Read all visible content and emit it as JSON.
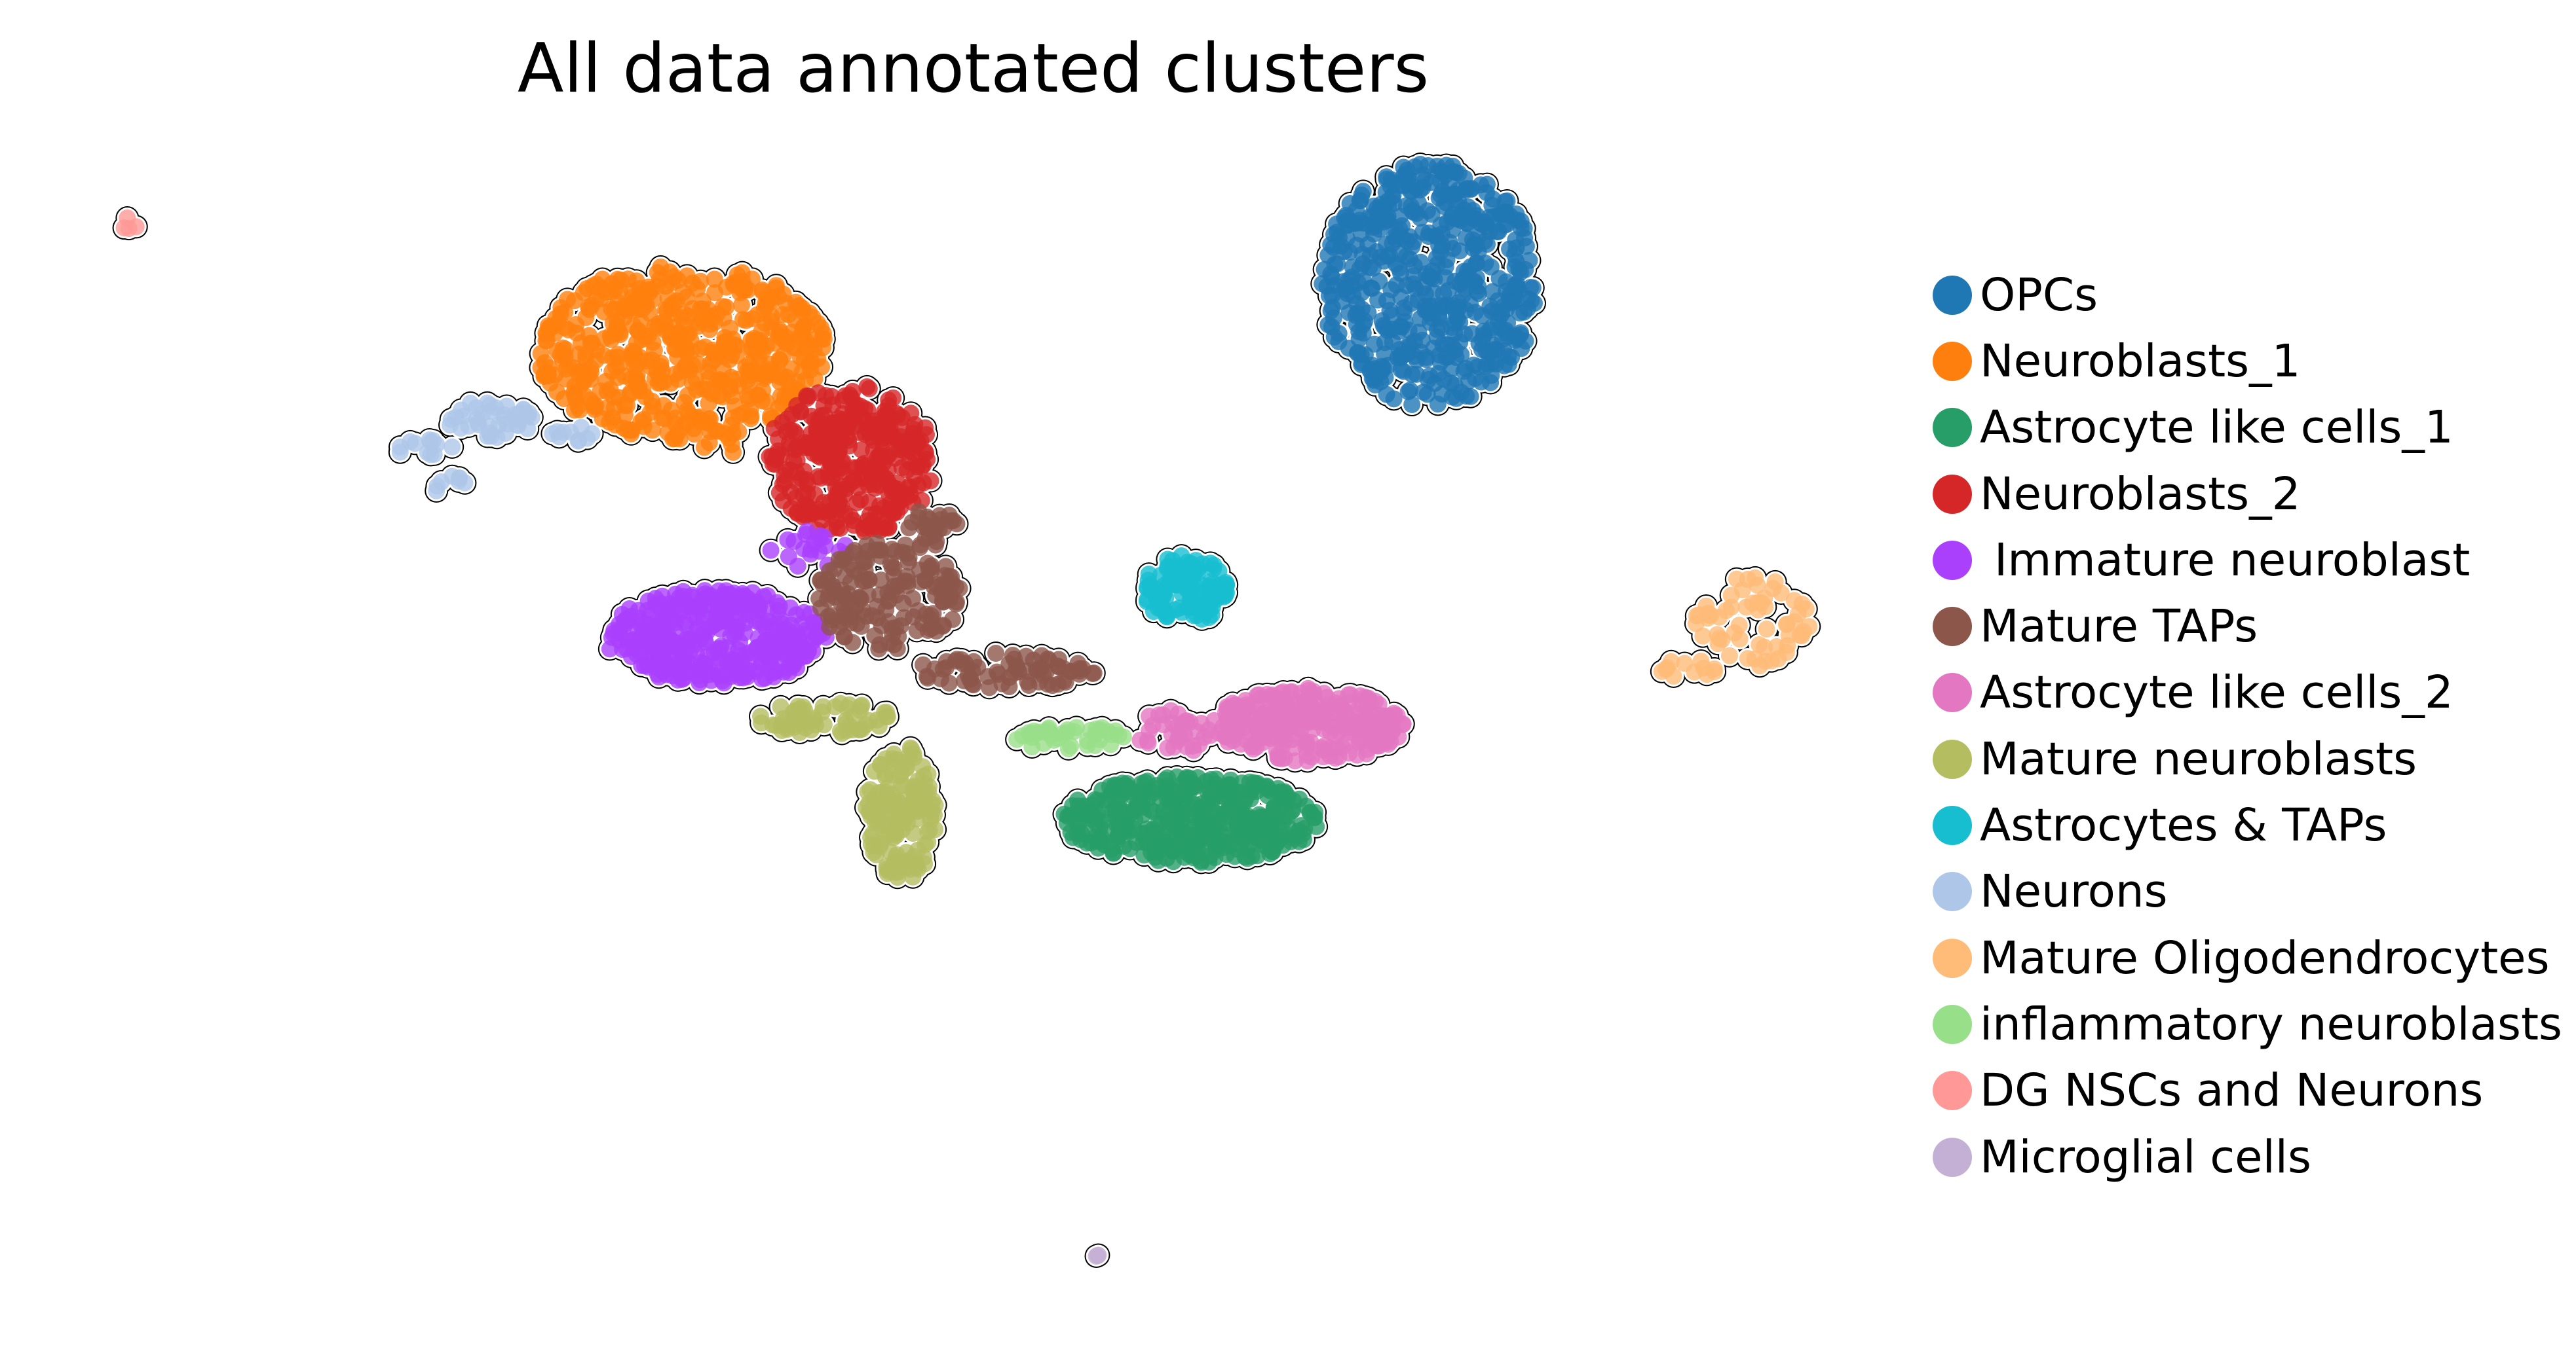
{
  "chart_data": {
    "type": "scatter",
    "title": "All data annotated clusters",
    "xlabel": "",
    "ylabel": "",
    "axes_visible": false,
    "grid": false,
    "legend_placement": "right",
    "xlim": [
      0,
      100
    ],
    "ylim": [
      0,
      100
    ],
    "series": [
      {
        "name": "OPCs",
        "color": "#1f77b4",
        "clusters": [
          {
            "cx": 55.5,
            "cy": 79,
            "rx": 4.2,
            "ry": 9.0,
            "n": 520
          }
        ]
      },
      {
        "name": "Neuroblasts_1",
        "color": "#ff7f0e",
        "clusters": [
          {
            "cx": 26.5,
            "cy": 74,
            "rx": 5.6,
            "ry": 6.5,
            "n": 520
          },
          {
            "cx": 28.0,
            "cy": 67.5,
            "rx": 1.0,
            "ry": 1.0,
            "n": 6
          }
        ]
      },
      {
        "name": "Astrocyte like cells_1",
        "color": "#279e68",
        "clusters": [
          {
            "cx": 46.2,
            "cy": 39.5,
            "rx": 5.0,
            "ry": 3.2,
            "n": 400
          }
        ]
      },
      {
        "name": "Neuroblasts_2",
        "color": "#d62728",
        "clusters": [
          {
            "cx": 33.0,
            "cy": 66.0,
            "rx": 3.3,
            "ry": 5.6,
            "n": 330
          }
        ]
      },
      {
        "name": " Immature neuroblast",
        "color": "#aa40fc",
        "clusters": [
          {
            "cx": 27.8,
            "cy": 53.0,
            "rx": 4.3,
            "ry": 3.5,
            "n": 360
          },
          {
            "cx": 31.5,
            "cy": 59.5,
            "rx": 1.6,
            "ry": 1.4,
            "n": 20
          }
        ]
      },
      {
        "name": "Mature TAPs",
        "color": "#8c564b",
        "clusters": [
          {
            "cx": 34.5,
            "cy": 56.0,
            "rx": 2.8,
            "ry": 4.0,
            "n": 160
          },
          {
            "cx": 39.0,
            "cy": 50.5,
            "rx": 3.5,
            "ry": 1.3,
            "n": 70
          },
          {
            "cx": 36.0,
            "cy": 61.0,
            "rx": 1.2,
            "ry": 1.5,
            "n": 25
          }
        ]
      },
      {
        "name": "Astrocyte like cells_2",
        "color": "#e377c2",
        "clusters": [
          {
            "cx": 50.8,
            "cy": 46.5,
            "rx": 3.7,
            "ry": 2.7,
            "n": 260
          },
          {
            "cx": 45.6,
            "cy": 46.0,
            "rx": 1.6,
            "ry": 1.6,
            "n": 35
          }
        ]
      },
      {
        "name": "Mature neuroblasts",
        "color": "#b5bd61",
        "clusters": [
          {
            "cx": 35.0,
            "cy": 40.0,
            "rx": 1.4,
            "ry": 5.0,
            "n": 150
          },
          {
            "cx": 32.0,
            "cy": 47.0,
            "rx": 2.6,
            "ry": 1.2,
            "n": 60
          }
        ]
      },
      {
        "name": "Astrocytes & TAPs",
        "color": "#17becf",
        "clusters": [
          {
            "cx": 46.0,
            "cy": 56.5,
            "rx": 1.7,
            "ry": 2.6,
            "n": 120
          }
        ]
      },
      {
        "name": "Neurons",
        "color": "#aec7e8",
        "clusters": [
          {
            "cx": 19.0,
            "cy": 69.0,
            "rx": 1.8,
            "ry": 1.4,
            "n": 40
          },
          {
            "cx": 16.5,
            "cy": 67.0,
            "rx": 1.3,
            "ry": 0.6,
            "n": 12
          },
          {
            "cx": 17.5,
            "cy": 64.0,
            "rx": 0.6,
            "ry": 1.0,
            "n": 8
          },
          {
            "cx": 22.5,
            "cy": 68.0,
            "rx": 1.2,
            "ry": 0.6,
            "n": 10
          }
        ]
      },
      {
        "name": "Mature Oligodendrocytes",
        "color": "#ffbb78",
        "clusters": [
          {
            "cx": 68.0,
            "cy": 54.0,
            "rx": 2.4,
            "ry": 3.4,
            "n": 60
          },
          {
            "cx": 65.5,
            "cy": 50.6,
            "rx": 1.2,
            "ry": 0.7,
            "n": 12
          }
        ]
      },
      {
        "name": "inflammatory neuroblasts",
        "color": "#98df8a",
        "clusters": [
          {
            "cx": 41.5,
            "cy": 45.5,
            "rx": 2.2,
            "ry": 1.0,
            "n": 40
          }
        ]
      },
      {
        "name": "DG NSCs and Neurons",
        "color": "#ff9896",
        "clusters": [
          {
            "cx": 5.0,
            "cy": 83.5,
            "rx": 0.4,
            "ry": 0.6,
            "n": 4
          }
        ]
      },
      {
        "name": "Microglial cells",
        "color": "#c5b0d5",
        "clusters": [
          {
            "cx": 42.5,
            "cy": 7.0,
            "rx": 0.3,
            "ry": 0.6,
            "n": 3
          }
        ]
      }
    ]
  }
}
